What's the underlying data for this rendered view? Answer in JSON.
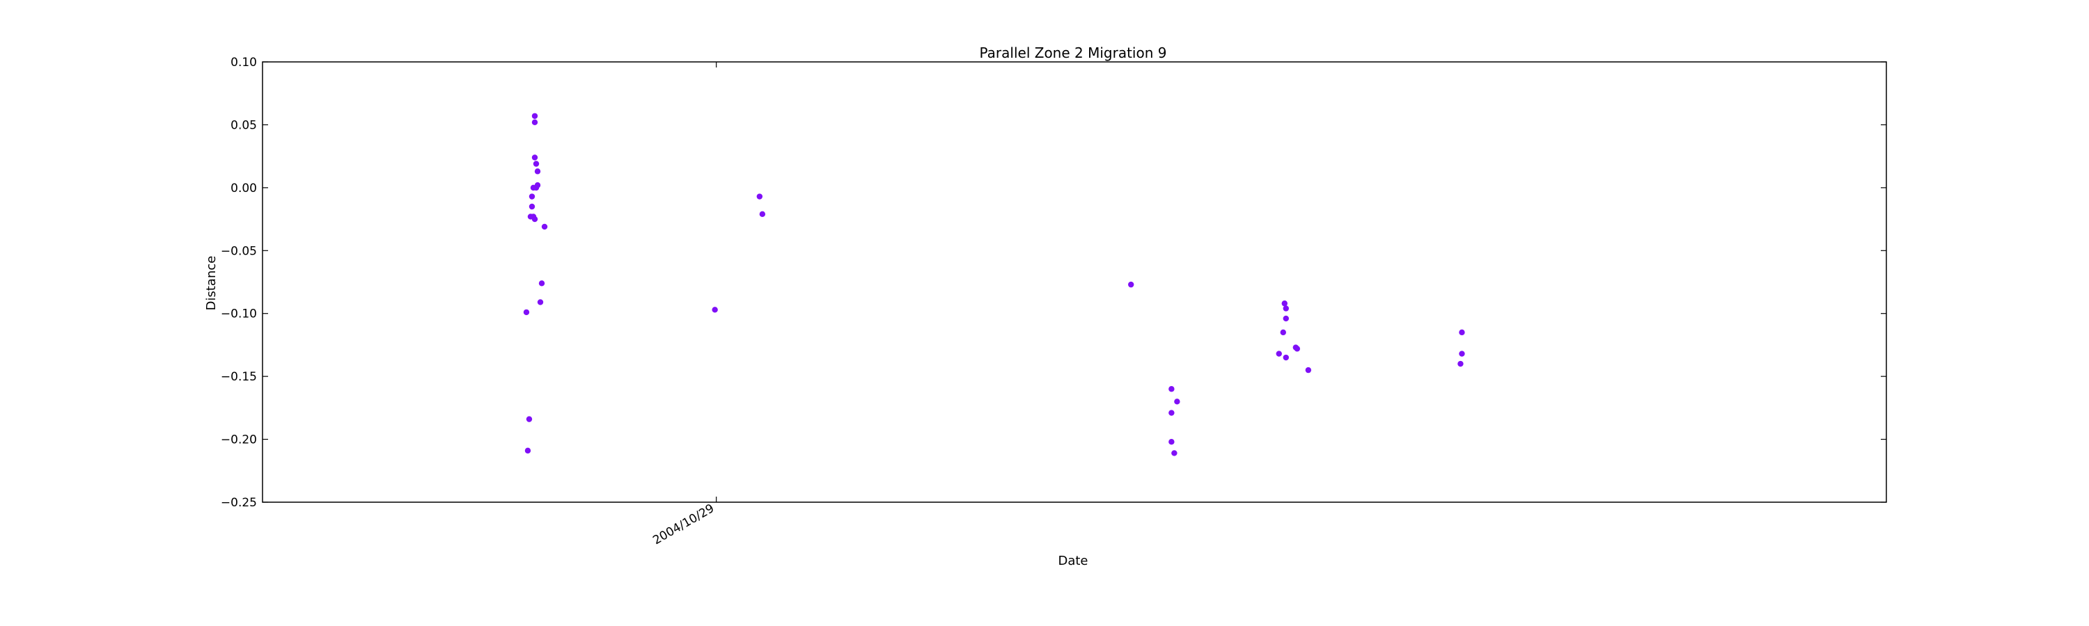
{
  "chart_data": {
    "type": "scatter",
    "title": "Parallel Zone 2 Migration 9",
    "xlabel": "Date",
    "ylabel": "Distance",
    "ylim": [
      -0.25,
      0.1
    ],
    "yticks": [
      "0.10",
      "0.05",
      "0.00",
      "−0.05",
      "−0.10",
      "−0.15",
      "−0.20",
      "−0.25"
    ],
    "xticks": [
      {
        "label": "2004/10/29",
        "date": "2004-10-29"
      }
    ],
    "xlim": [
      "2003-12-09",
      "2007-02-14"
    ],
    "grid": false,
    "point_color": "#7f0ff7",
    "series": [
      {
        "points": [
          {
            "x": "2004-06-15",
            "y": -0.099
          },
          {
            "x": "2004-06-16",
            "y": -0.209
          },
          {
            "x": "2004-06-17",
            "y": -0.184
          },
          {
            "x": "2004-06-18",
            "y": -0.023
          },
          {
            "x": "2004-06-19",
            "y": -0.015
          },
          {
            "x": "2004-06-19",
            "y": -0.007
          },
          {
            "x": "2004-06-20",
            "y": 0.0
          },
          {
            "x": "2004-06-20",
            "y": -0.023
          },
          {
            "x": "2004-06-21",
            "y": -0.025
          },
          {
            "x": "2004-06-21",
            "y": 0.057
          },
          {
            "x": "2004-06-21",
            "y": 0.052
          },
          {
            "x": "2004-06-21",
            "y": 0.024
          },
          {
            "x": "2004-06-22",
            "y": 0.019
          },
          {
            "x": "2004-06-22",
            "y": 0.0
          },
          {
            "x": "2004-06-23",
            "y": 0.013
          },
          {
            "x": "2004-06-23",
            "y": 0.002
          },
          {
            "x": "2004-06-25",
            "y": -0.091
          },
          {
            "x": "2004-06-26",
            "y": -0.076
          },
          {
            "x": "2004-06-28",
            "y": -0.031
          },
          {
            "x": "2004-10-28",
            "y": -0.097
          },
          {
            "x": "2004-11-29",
            "y": -0.007
          },
          {
            "x": "2004-12-01",
            "y": -0.021
          },
          {
            "x": "2005-08-22",
            "y": -0.077
          },
          {
            "x": "2005-09-20",
            "y": -0.16
          },
          {
            "x": "2005-09-20",
            "y": -0.179
          },
          {
            "x": "2005-09-20",
            "y": -0.202
          },
          {
            "x": "2005-09-22",
            "y": -0.211
          },
          {
            "x": "2005-09-24",
            "y": -0.17
          },
          {
            "x": "2005-12-06",
            "y": -0.132
          },
          {
            "x": "2005-12-09",
            "y": -0.115
          },
          {
            "x": "2005-12-10",
            "y": -0.092
          },
          {
            "x": "2005-12-11",
            "y": -0.096
          },
          {
            "x": "2005-12-11",
            "y": -0.104
          },
          {
            "x": "2005-12-11",
            "y": -0.135
          },
          {
            "x": "2005-12-18",
            "y": -0.127
          },
          {
            "x": "2005-12-19",
            "y": -0.128
          },
          {
            "x": "2005-12-27",
            "y": -0.145
          },
          {
            "x": "2006-04-15",
            "y": -0.14
          },
          {
            "x": "2006-04-16",
            "y": -0.132
          },
          {
            "x": "2006-04-16",
            "y": -0.115
          }
        ]
      }
    ]
  }
}
